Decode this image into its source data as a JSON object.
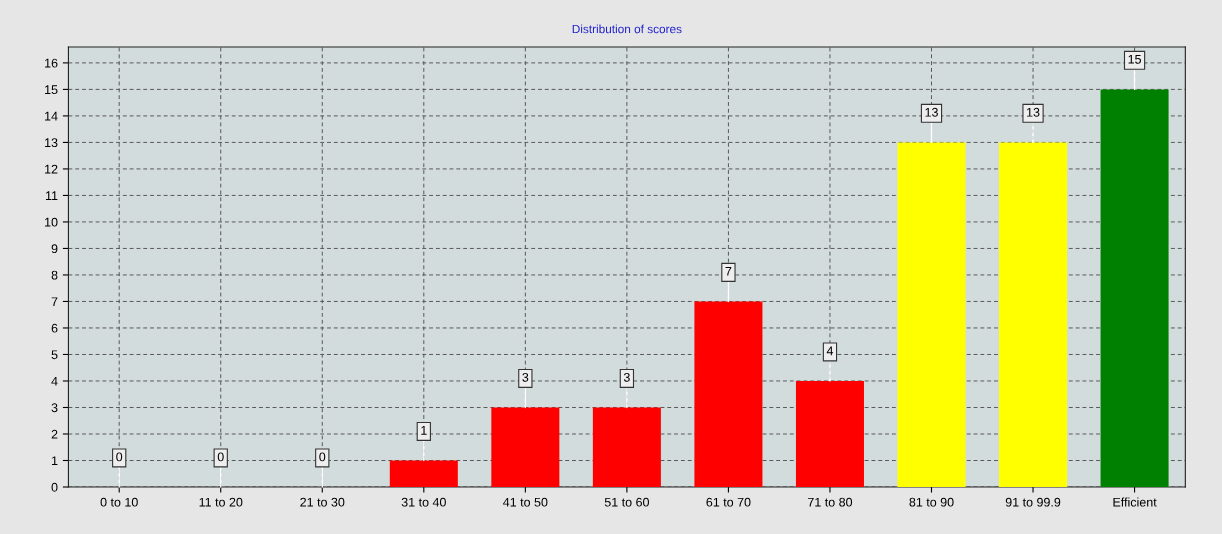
{
  "chart_data": {
    "type": "bar",
    "title": "Distribution of scores",
    "categories": [
      "0 to 10",
      "11 to 20",
      "21 to 30",
      "31 to 40",
      "41 to 50",
      "51 to 60",
      "61 to 70",
      "71 to 80",
      "81 to 90",
      "91 to 99.9",
      "Efficient"
    ],
    "values": [
      0,
      0,
      0,
      1,
      3,
      3,
      7,
      4,
      13,
      13,
      15
    ],
    "colors": [
      "#ff0000",
      "#ff0000",
      "#ff0000",
      "#ff0000",
      "#ff0000",
      "#ff0000",
      "#ff0000",
      "#ff0000",
      "#ffff00",
      "#ffff00",
      "#008000"
    ],
    "ylim": [
      0,
      16.6
    ],
    "yticks": [
      0,
      1,
      2,
      3,
      4,
      5,
      6,
      7,
      8,
      9,
      10,
      11,
      12,
      13,
      14,
      15,
      16
    ],
    "grid": true,
    "data_labels": true
  }
}
